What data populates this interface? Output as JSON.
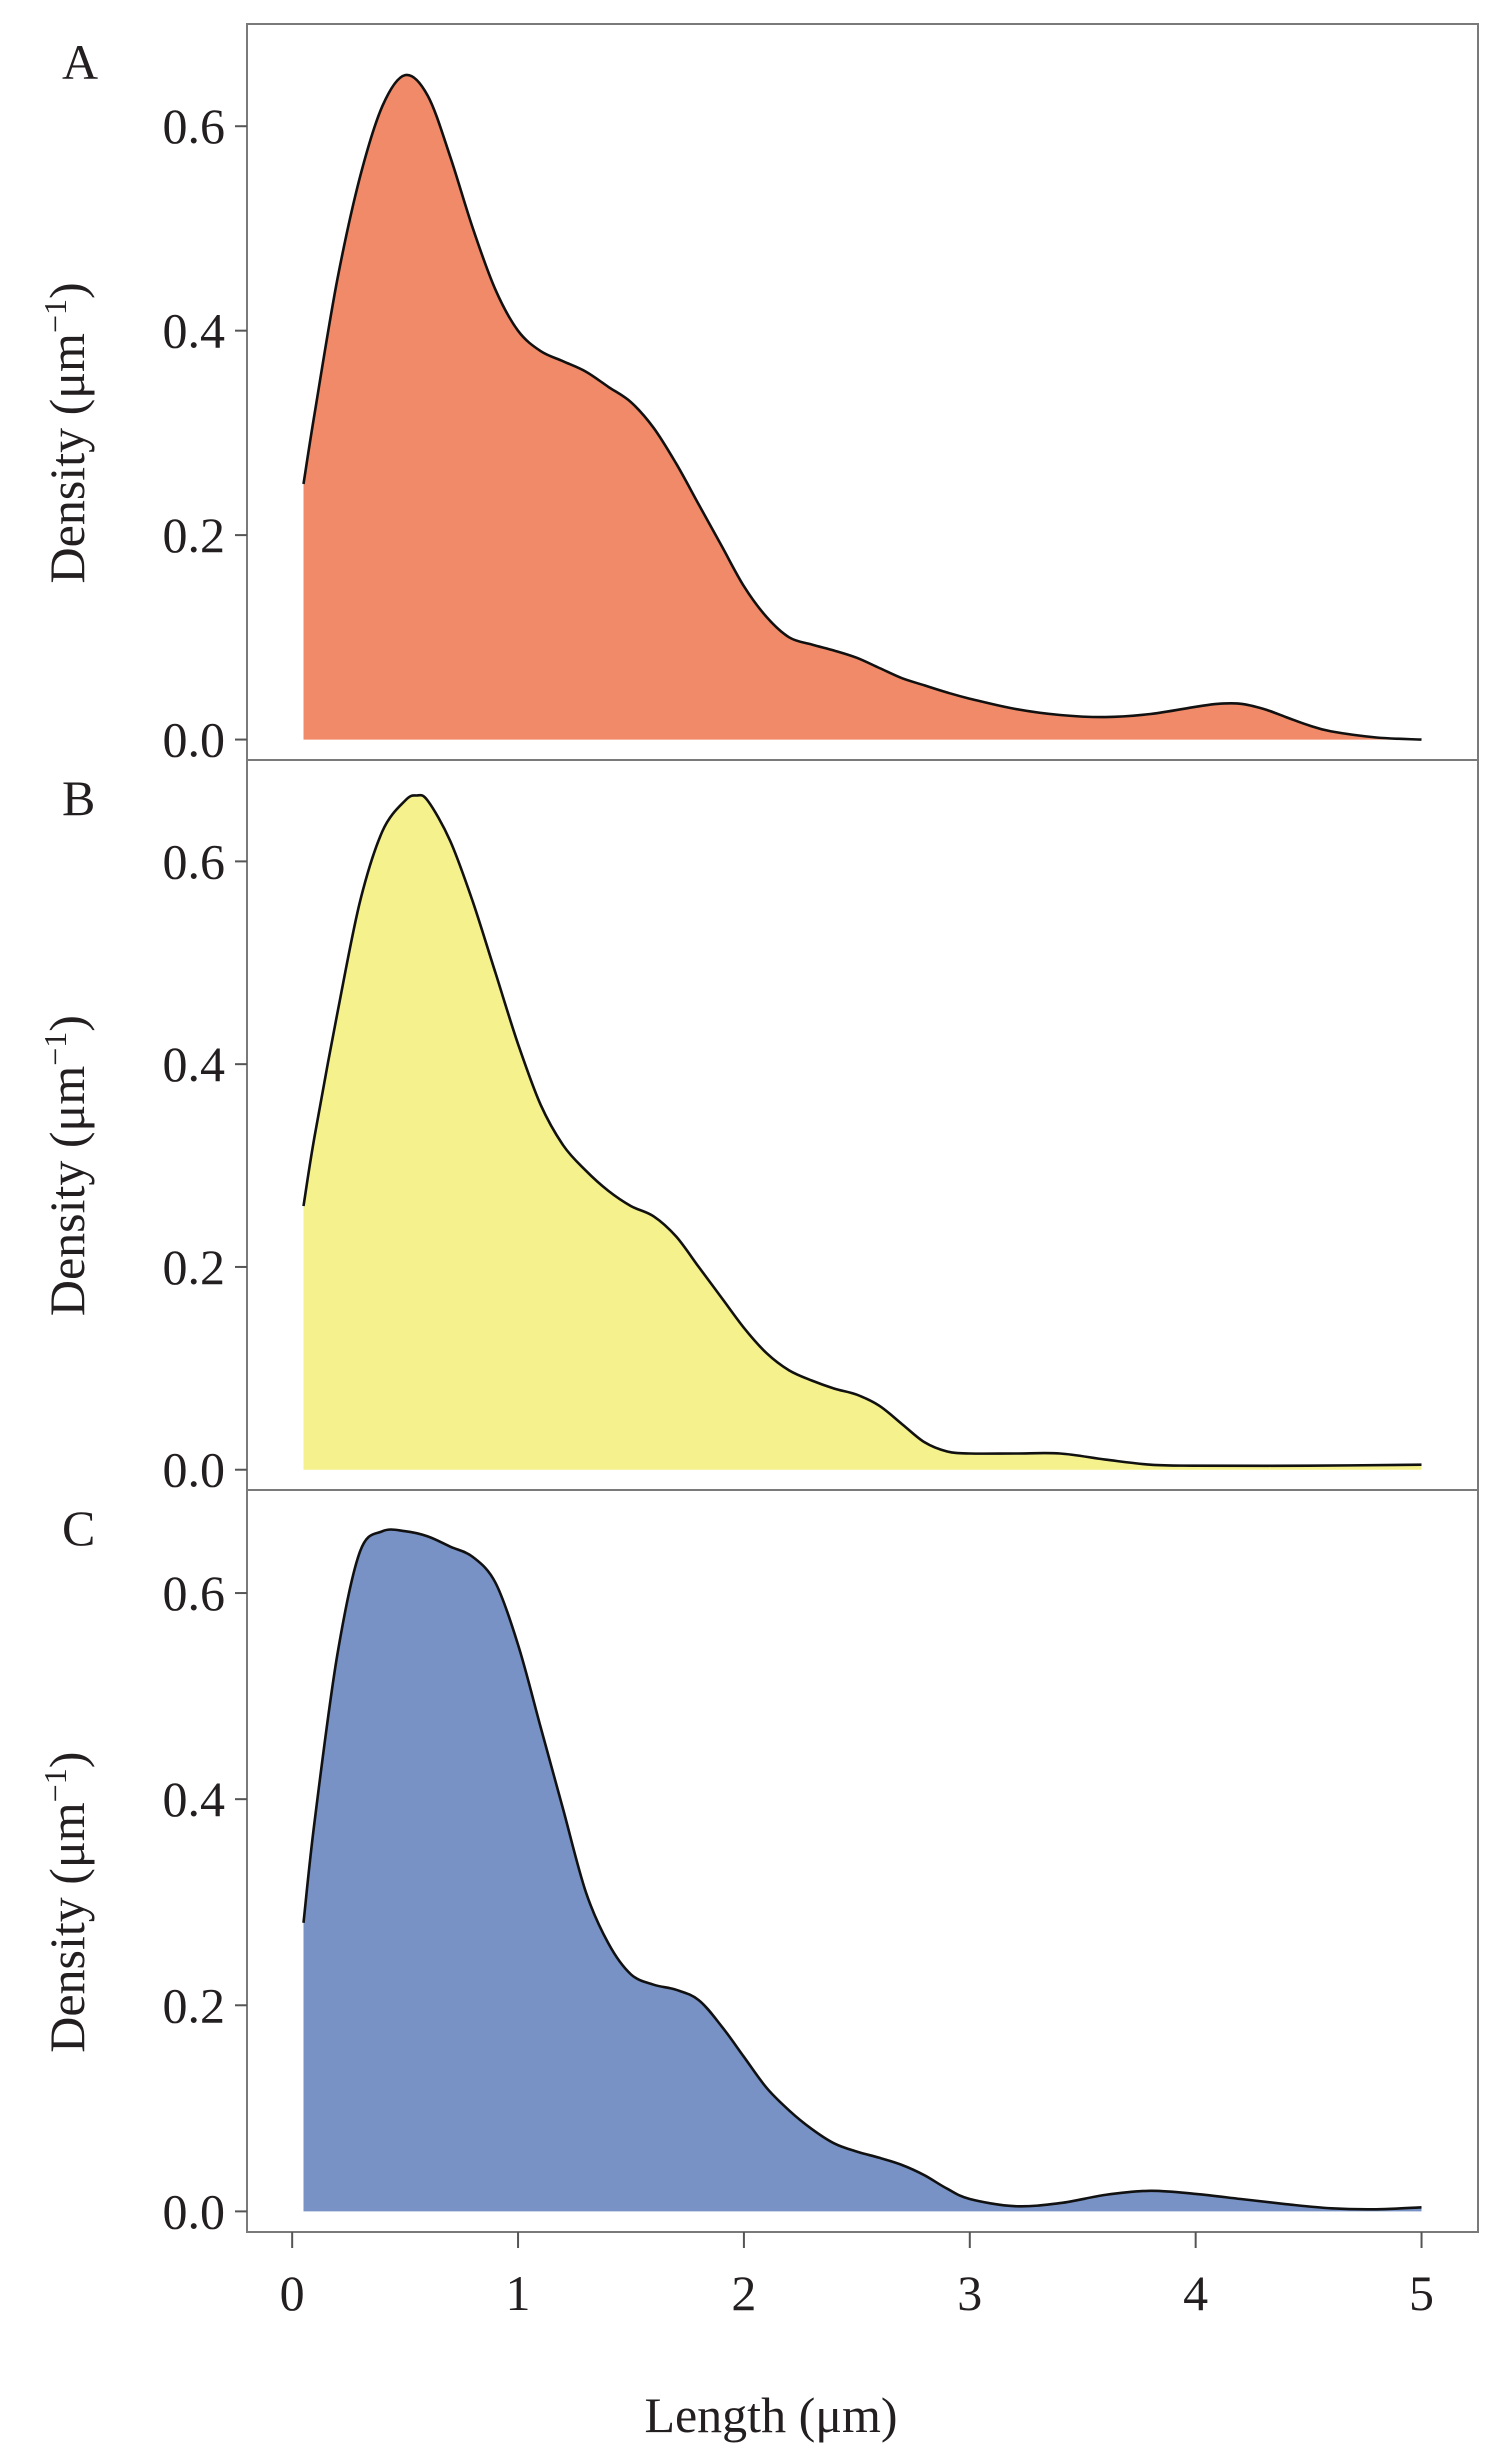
{
  "chart_data": {
    "type": "area",
    "kind": "density",
    "shared_x_axis": {
      "label": "Length (μm)",
      "range": [
        -0.2,
        5.25
      ],
      "ticks": [
        0,
        1,
        2,
        3,
        4,
        5
      ],
      "tick_labels": [
        "0",
        "1",
        "2",
        "3",
        "4",
        "5"
      ]
    },
    "panels": [
      {
        "label": "A",
        "ylabel": "Density (μm",
        "ylabel_sup": "−1",
        "ylabel_close": ")",
        "ylim": [
          -0.02,
          0.7
        ],
        "yticks": [
          0.0,
          0.2,
          0.4,
          0.6
        ],
        "ytick_labels": [
          "0.0",
          "0.2",
          "0.4",
          "0.6"
        ],
        "fill": "#f08a69",
        "x": [
          0.05,
          0.1,
          0.2,
          0.3,
          0.4,
          0.5,
          0.6,
          0.7,
          0.8,
          0.9,
          1.0,
          1.1,
          1.2,
          1.3,
          1.4,
          1.5,
          1.6,
          1.7,
          1.8,
          1.9,
          2.0,
          2.1,
          2.2,
          2.3,
          2.4,
          2.5,
          2.6,
          2.7,
          2.8,
          2.9,
          3.0,
          3.2,
          3.4,
          3.6,
          3.8,
          4.0,
          4.1,
          4.2,
          4.3,
          4.4,
          4.5,
          4.6,
          4.8,
          5.0
        ],
        "y": [
          0.25,
          0.32,
          0.45,
          0.55,
          0.62,
          0.65,
          0.63,
          0.57,
          0.5,
          0.44,
          0.4,
          0.38,
          0.37,
          0.36,
          0.345,
          0.33,
          0.305,
          0.27,
          0.23,
          0.19,
          0.15,
          0.12,
          0.1,
          0.093,
          0.087,
          0.08,
          0.07,
          0.06,
          0.053,
          0.046,
          0.04,
          0.03,
          0.024,
          0.022,
          0.025,
          0.032,
          0.035,
          0.035,
          0.03,
          0.022,
          0.014,
          0.008,
          0.002,
          0.0
        ]
      },
      {
        "label": "B",
        "ylabel": "Density (μm",
        "ylabel_sup": "−1",
        "ylabel_close": ")",
        "ylim": [
          -0.02,
          0.7
        ],
        "yticks": [
          0.0,
          0.2,
          0.4,
          0.6
        ],
        "ytick_labels": [
          "0.0",
          "0.2",
          "0.4",
          "0.6"
        ],
        "fill": "#f5f18c",
        "x": [
          0.05,
          0.1,
          0.2,
          0.3,
          0.4,
          0.5,
          0.55,
          0.6,
          0.7,
          0.8,
          0.9,
          1.0,
          1.1,
          1.2,
          1.3,
          1.4,
          1.5,
          1.6,
          1.7,
          1.8,
          1.9,
          2.0,
          2.1,
          2.2,
          2.3,
          2.4,
          2.5,
          2.6,
          2.7,
          2.8,
          2.9,
          3.0,
          3.2,
          3.4,
          3.6,
          3.8,
          4.0,
          4.5,
          5.0
        ],
        "y": [
          0.26,
          0.33,
          0.45,
          0.56,
          0.63,
          0.66,
          0.665,
          0.66,
          0.62,
          0.56,
          0.49,
          0.42,
          0.36,
          0.32,
          0.295,
          0.275,
          0.26,
          0.25,
          0.23,
          0.2,
          0.17,
          0.14,
          0.115,
          0.098,
          0.088,
          0.08,
          0.074,
          0.063,
          0.045,
          0.027,
          0.018,
          0.016,
          0.016,
          0.016,
          0.01,
          0.005,
          0.004,
          0.004,
          0.005
        ]
      },
      {
        "label": "C",
        "ylabel": "Density (μm",
        "ylabel_sup": "−1",
        "ylabel_close": ")",
        "ylim": [
          -0.02,
          0.7
        ],
        "yticks": [
          0.0,
          0.2,
          0.4,
          0.6
        ],
        "ytick_labels": [
          "0.0",
          "0.2",
          "0.4",
          "0.6"
        ],
        "fill": "#7892c5",
        "x": [
          0.05,
          0.1,
          0.2,
          0.3,
          0.4,
          0.5,
          0.6,
          0.7,
          0.8,
          0.9,
          1.0,
          1.1,
          1.2,
          1.3,
          1.4,
          1.5,
          1.6,
          1.7,
          1.8,
          1.9,
          2.0,
          2.1,
          2.2,
          2.3,
          2.4,
          2.5,
          2.6,
          2.7,
          2.8,
          2.9,
          3.0,
          3.2,
          3.4,
          3.6,
          3.8,
          4.0,
          4.2,
          4.4,
          4.6,
          4.8,
          5.0
        ],
        "y": [
          0.28,
          0.38,
          0.54,
          0.64,
          0.66,
          0.66,
          0.655,
          0.645,
          0.635,
          0.61,
          0.55,
          0.47,
          0.39,
          0.31,
          0.26,
          0.23,
          0.22,
          0.215,
          0.205,
          0.18,
          0.15,
          0.12,
          0.098,
          0.08,
          0.066,
          0.058,
          0.052,
          0.045,
          0.035,
          0.022,
          0.012,
          0.005,
          0.008,
          0.016,
          0.02,
          0.017,
          0.012,
          0.007,
          0.003,
          0.002,
          0.004
        ]
      }
    ]
  }
}
